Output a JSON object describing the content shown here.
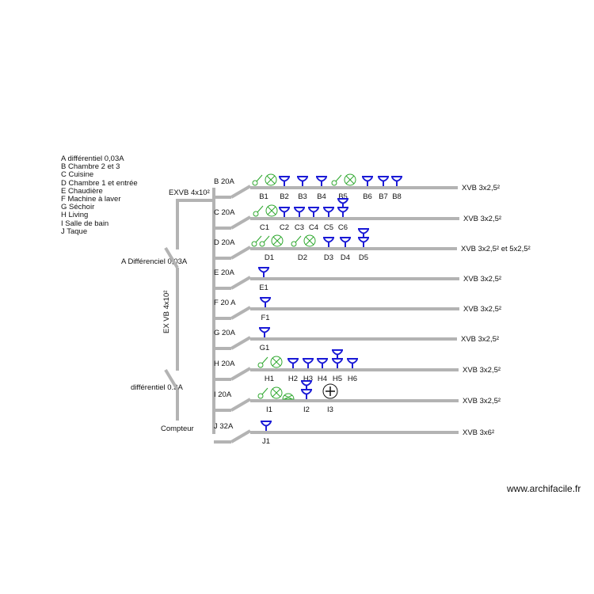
{
  "legend": [
    "A différentiel 0,03A",
    "B Chambre 2 et 3",
    "C Cuisine",
    "D Chambre 1 et entrée",
    "E Chaudière",
    "F Machine à laver",
    "G Séchoir",
    "H Living",
    "I Salle de bain",
    "J Taque"
  ],
  "main": {
    "feed_cable_top": "EXVB 4x10²",
    "feed_cable_vertical": "EX VB 4x10²",
    "diff_A": "A Différenciel 0,03A",
    "diff_main": "différentiel 0.3A",
    "meter": "Compteur"
  },
  "colors": {
    "wire": "#b3b3b3",
    "switch_lamp": "#2fa82f",
    "socket": "#1a1ad6",
    "text": "#111111"
  },
  "circuits": [
    {
      "breaker": "B 20A",
      "cable": "XVB 3x2,5²",
      "items": [
        {
          "label": "B1",
          "symbols": [
            "switch",
            "lamp"
          ]
        },
        {
          "label": "B2",
          "symbols": [
            "socket"
          ]
        },
        {
          "label": "B3",
          "symbols": [
            "socket"
          ]
        },
        {
          "label": "B4",
          "symbols": [
            "socket"
          ]
        },
        {
          "label": "B5",
          "symbols": [
            "switch",
            "lamp"
          ]
        },
        {
          "label": "B6",
          "symbols": [
            "socket"
          ]
        },
        {
          "label": "B7",
          "symbols": [
            "socket"
          ]
        },
        {
          "label": "B8",
          "symbols": [
            "socket"
          ]
        }
      ]
    },
    {
      "breaker": "C 20A",
      "cable": "XVB 3x2,5²",
      "items": [
        {
          "label": "C1",
          "symbols": [
            "switch",
            "lamp"
          ]
        },
        {
          "label": "C2",
          "symbols": [
            "socket"
          ]
        },
        {
          "label": "C3",
          "symbols": [
            "socket"
          ]
        },
        {
          "label": "C4",
          "symbols": [
            "socket"
          ]
        },
        {
          "label": "C5",
          "symbols": [
            "socket"
          ]
        },
        {
          "label": "C6",
          "symbols": [
            "double-socket"
          ]
        }
      ]
    },
    {
      "breaker": "D 20A",
      "cable": "XVB 3x2,5² et 5x2,5²",
      "items": [
        {
          "label": "D1",
          "symbols": [
            "two-way-switch",
            "two-way-switch",
            "lamp"
          ]
        },
        {
          "label": "D2",
          "symbols": [
            "switch",
            "lamp"
          ]
        },
        {
          "label": "D3",
          "symbols": [
            "socket"
          ]
        },
        {
          "label": "D4",
          "symbols": [
            "socket"
          ]
        },
        {
          "label": "D5",
          "symbols": [
            "double-socket"
          ]
        }
      ]
    },
    {
      "breaker": "E 20A",
      "cable": "XVB 3x2,5²",
      "items": [
        {
          "label": "E1",
          "symbols": [
            "socket"
          ]
        }
      ]
    },
    {
      "breaker": "F 20 A",
      "cable": "XVB 3x2,5²",
      "items": [
        {
          "label": "F1",
          "symbols": [
            "socket"
          ]
        }
      ]
    },
    {
      "breaker": "G 20A",
      "cable": "XVB 3x2,5²",
      "items": [
        {
          "label": "G1",
          "symbols": [
            "socket"
          ]
        }
      ]
    },
    {
      "breaker": "H 20A",
      "cable": "XVB 3x2,5²",
      "items": [
        {
          "label": "H1",
          "symbols": [
            "switch",
            "lamp"
          ]
        },
        {
          "label": "H2",
          "symbols": [
            "socket"
          ]
        },
        {
          "label": "H3",
          "symbols": [
            "socket"
          ]
        },
        {
          "label": "H4",
          "symbols": [
            "socket"
          ]
        },
        {
          "label": "H5",
          "symbols": [
            "double-socket"
          ]
        },
        {
          "label": "H6",
          "symbols": [
            "socket"
          ]
        }
      ]
    },
    {
      "breaker": "I 20A",
      "cable": "XVB 3x2,5²",
      "items": [
        {
          "label": "I1",
          "symbols": [
            "switch",
            "lamp",
            "wall-lamp"
          ]
        },
        {
          "label": "I2",
          "symbols": [
            "double-socket"
          ]
        },
        {
          "label": "I3",
          "symbols": [
            "fan"
          ]
        }
      ]
    },
    {
      "breaker": "J 32A",
      "cable": "XVB 3x6²",
      "items": [
        {
          "label": "J1",
          "symbols": [
            "socket"
          ]
        }
      ]
    }
  ],
  "watermark": "www.archifacile.fr"
}
